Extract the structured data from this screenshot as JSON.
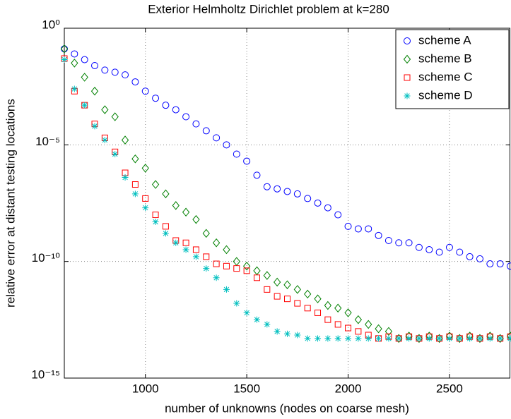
{
  "chart_data": {
    "type": "scatter",
    "title": "Exterior Helmholtz Dirichlet problem at k=280",
    "x_label": "number of unknowns (nodes on coarse mesh)",
    "y_label": "relative error at distant testing locations",
    "x": [
      600,
      650,
      700,
      750,
      800,
      850,
      900,
      950,
      1000,
      1050,
      1100,
      1150,
      1200,
      1250,
      1300,
      1350,
      1400,
      1450,
      1500,
      1550,
      1600,
      1650,
      1700,
      1750,
      1800,
      1850,
      1900,
      1950,
      2000,
      2050,
      2100,
      2150,
      2200,
      2250,
      2300,
      2350,
      2400,
      2450,
      2500,
      2550,
      2600,
      2650,
      2700,
      2750,
      2800
    ],
    "series": [
      {
        "name": "scheme A",
        "color": "#0000ff",
        "marker": "circle",
        "values": [
          0.13,
          0.079,
          0.045,
          0.025,
          0.016,
          0.013,
          0.01,
          0.005,
          0.002,
          0.001,
          0.0005,
          0.00032,
          0.00016,
          7.9e-05,
          4e-05,
          2e-05,
          1e-05,
          4e-06,
          2e-06,
          5e-07,
          1.6e-07,
          1.3e-07,
          1e-07,
          7.9e-08,
          5e-08,
          3.2e-08,
          2e-08,
          1e-08,
          3.2e-09,
          2.5e-09,
          2.5e-09,
          1.3e-09,
          7.9e-10,
          6.3e-10,
          6.3e-10,
          4e-10,
          3.2e-10,
          2.5e-10,
          4e-10,
          2.5e-10,
          1.6e-10,
          1.3e-10,
          7.9e-11,
          7.9e-11,
          6.3e-11
        ]
      },
      {
        "name": "scheme B",
        "color": "#008000",
        "marker": "diamond",
        "values": [
          0.13,
          0.032,
          0.0079,
          0.002,
          0.00032,
          0.00016,
          1.6e-05,
          2.5e-06,
          1e-06,
          2e-07,
          7.9e-08,
          2.5e-08,
          1.3e-08,
          6.3e-09,
          1.6e-09,
          6.3e-10,
          3.2e-10,
          1e-10,
          6.3e-11,
          4e-11,
          2.5e-11,
          1.3e-11,
          1e-11,
          6.3e-12,
          4e-12,
          2.5e-12,
          1.3e-12,
          1e-12,
          6.3e-13,
          3.2e-13,
          2e-13,
          1.3e-13,
          1e-13,
          5e-14,
          6.3e-14,
          5e-14,
          6.3e-14,
          5e-14,
          6.3e-14,
          5e-14,
          6.3e-14,
          5e-14,
          6.3e-14,
          5e-14,
          6.3e-14
        ]
      },
      {
        "name": "scheme C",
        "color": "#ff0000",
        "marker": "square",
        "values": [
          0.05,
          0.002,
          0.0005,
          7.9e-05,
          2e-05,
          5e-06,
          6.3e-07,
          2e-07,
          5e-08,
          1e-08,
          3.2e-09,
          7.9e-10,
          6.3e-10,
          3.2e-10,
          1.6e-10,
          7.9e-11,
          6.3e-11,
          5e-11,
          4e-11,
          2e-11,
          6.3e-12,
          3.2e-12,
          2.5e-12,
          1.6e-12,
          1e-12,
          6.3e-13,
          3.2e-13,
          2e-13,
          1.4e-13,
          1e-13,
          7e-14,
          5e-14,
          6e-14,
          5e-14,
          6e-14,
          5e-14,
          6e-14,
          5e-14,
          6e-14,
          5e-14,
          6e-14,
          5e-14,
          6e-14,
          5e-14,
          6e-14
        ]
      },
      {
        "name": "scheme D",
        "color": "#00bfbf",
        "marker": "asterisk",
        "values": [
          0.045,
          0.0025,
          0.0005,
          6.3e-05,
          1.6e-05,
          4e-06,
          4e-07,
          7.9e-08,
          2e-08,
          5e-09,
          1.6e-09,
          6.3e-10,
          3.2e-10,
          1.6e-10,
          5e-11,
          2e-11,
          6.3e-12,
          1.6e-12,
          6.3e-13,
          3.2e-13,
          2e-13,
          1e-13,
          7.9e-14,
          7e-14,
          5e-14,
          5e-14,
          5e-14,
          5e-14,
          5e-14,
          5e-14,
          5e-14,
          5e-14,
          5e-14,
          5e-14,
          5e-14,
          5e-14,
          5e-14,
          5e-14,
          5e-14,
          5e-14,
          5e-14,
          5e-14,
          5e-14,
          5e-14,
          5e-14
        ]
      }
    ],
    "xlim": [
      600,
      2800
    ],
    "xticks": [
      1000,
      1500,
      2000,
      2500
    ],
    "ylim": [
      1e-15,
      1
    ],
    "yticks": [
      {
        "value": 1e-15,
        "label": "10⁻¹⁵"
      },
      {
        "value": 1e-10,
        "label": "10⁻¹⁰"
      },
      {
        "value": 1e-05,
        "label": "10⁻⁵"
      },
      {
        "value": 1,
        "label": "10⁰"
      }
    ],
    "log_y": true,
    "grid": true,
    "legend": "northeast"
  }
}
